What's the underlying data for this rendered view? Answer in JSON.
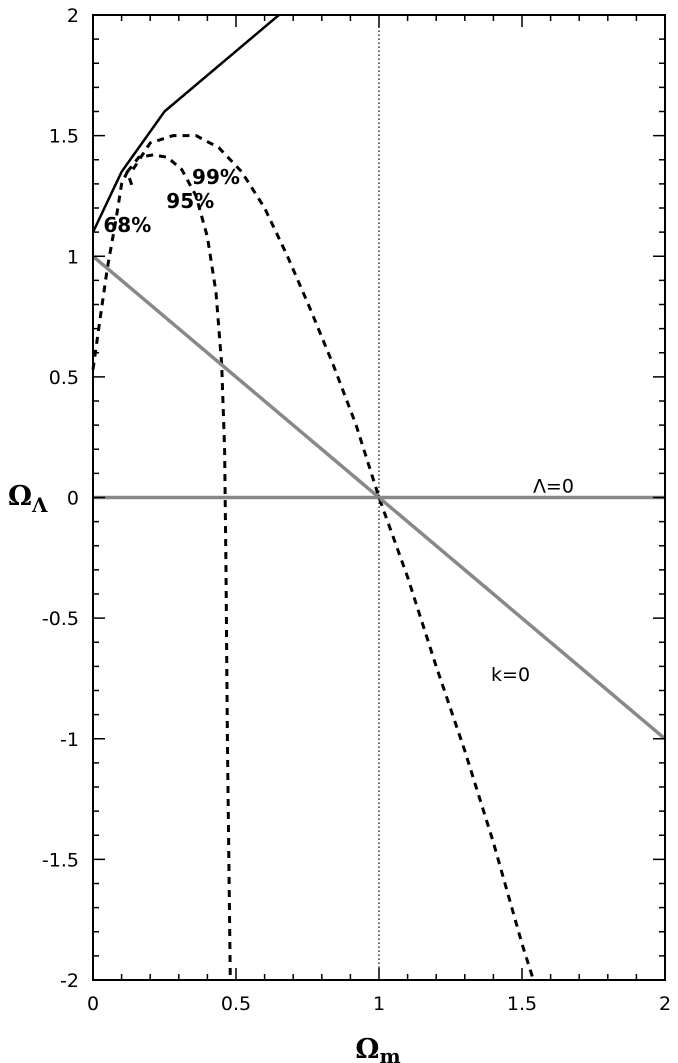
{
  "chart_data": {
    "type": "line",
    "xlabel": "Ω",
    "xlabel_sub": "m",
    "ylabel": "Ω",
    "ylabel_sub": "Λ",
    "xlim": [
      0,
      2
    ],
    "ylim": [
      -2,
      2
    ],
    "x_ticks": [
      0,
      0.5,
      1,
      1.5,
      2
    ],
    "x_tick_labels": [
      "0",
      "0.5",
      "1",
      "1.5",
      "2"
    ],
    "y_ticks": [
      -2,
      -1.5,
      -1,
      -0.5,
      0,
      0.5,
      1,
      1.5,
      2
    ],
    "y_tick_labels": [
      "-2",
      "-1.5",
      "-1",
      "-0.5",
      "0",
      "0.5",
      "1",
      "1.5",
      "2"
    ],
    "grid": false,
    "series": [
      {
        "style": "solid-black",
        "x": [
          0,
          0.1,
          0.25,
          0.65
        ],
        "y": [
          1.1,
          1.35,
          1.6,
          2.0
        ]
      },
      {
        "name": "68%",
        "style": "dashed",
        "x": [
          0,
          0.02,
          0.05,
          0.08,
          0.1,
          0.12,
          0.14
        ],
        "y": [
          0.53,
          0.7,
          0.95,
          1.15,
          1.3,
          1.35,
          1.28
        ]
      },
      {
        "name": "95%",
        "style": "dashed",
        "x": [
          0.12,
          0.16,
          0.21,
          0.26,
          0.31,
          0.36,
          0.4,
          0.43,
          0.45,
          0.46,
          0.465,
          0.47,
          0.48
        ],
        "y": [
          1.35,
          1.41,
          1.42,
          1.41,
          1.36,
          1.25,
          1.08,
          0.85,
          0.55,
          0.2,
          -0.3,
          -1.0,
          -2.0
        ]
      },
      {
        "name": "99%",
        "style": "dashed",
        "x": [
          0.14,
          0.2,
          0.28,
          0.36,
          0.44,
          0.52,
          0.6,
          0.68,
          0.76,
          0.84,
          0.92,
          1.0,
          1.1,
          1.2,
          1.3,
          1.4,
          1.5,
          1.54
        ],
        "y": [
          1.36,
          1.47,
          1.5,
          1.5,
          1.45,
          1.35,
          1.2,
          1.0,
          0.78,
          0.55,
          0.3,
          0.0,
          -0.33,
          -0.7,
          -1.05,
          -1.43,
          -1.85,
          -2.0
        ]
      },
      {
        "name": "k=0",
        "style": "solid-gray",
        "x": [
          0,
          2
        ],
        "y": [
          1,
          -1
        ]
      },
      {
        "name": "Λ=0",
        "style": "solid-gray",
        "x": [
          0,
          2
        ],
        "y": [
          0,
          0
        ]
      },
      {
        "style": "dotted",
        "x": [
          1,
          1
        ],
        "y": [
          -2,
          2
        ]
      }
    ],
    "annotations": [
      {
        "text": "68%",
        "x": 0.12,
        "y": 1.1
      },
      {
        "text": "95%",
        "x": 0.34,
        "y": 1.2
      },
      {
        "text": "99%",
        "x": 0.43,
        "y": 1.3
      },
      {
        "text": "Λ=0",
        "x": 1.61,
        "y": 0.02
      },
      {
        "text": "k=0",
        "x": 1.46,
        "y": -0.76
      }
    ]
  }
}
